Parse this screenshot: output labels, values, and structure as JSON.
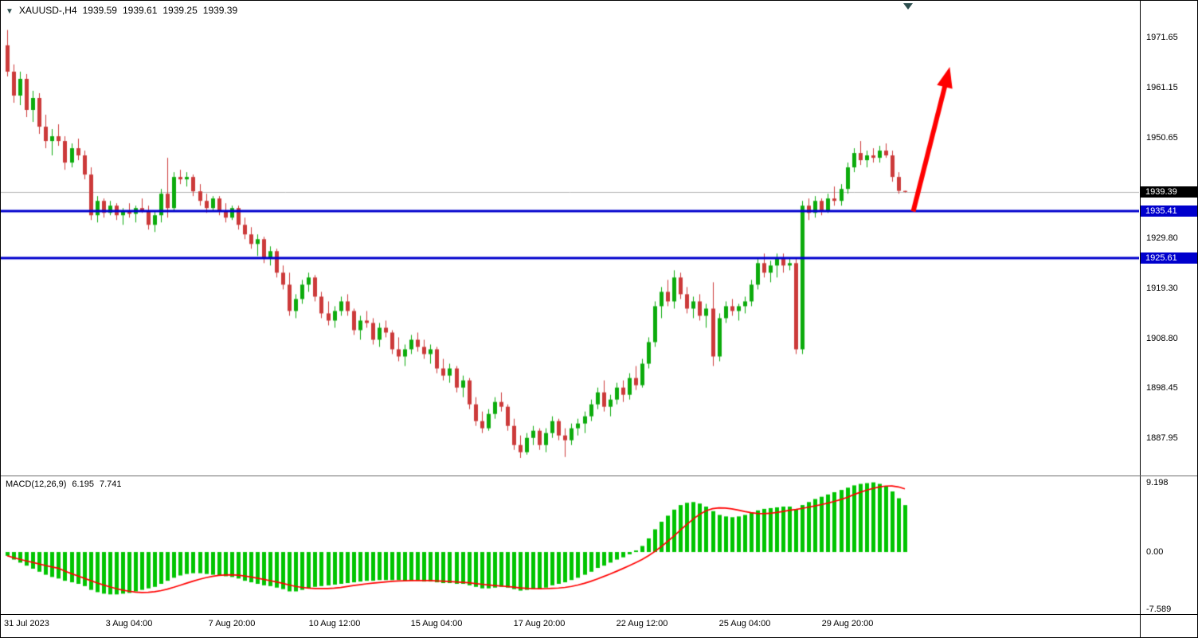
{
  "header": {
    "collapse_icon": "▼",
    "symbol_period": "XAUUSD-,H4",
    "open": "1939.59",
    "high": "1939.61",
    "low": "1939.25",
    "close": "1939.39"
  },
  "macd_header": {
    "label": "MACD(12,26,9)",
    "main_value": "6.195",
    "signal_value": "7.741"
  },
  "chart_data": {
    "type": "candlestick",
    "symbol": "XAUUSD-",
    "timeframe": "H4",
    "colors": {
      "up": "#0cab0c",
      "down": "#cc3a3a",
      "macd_bar": "#00c400",
      "macd_signal": "#ff0000",
      "hline": "#0000cd",
      "current_line": "#b0b0b0",
      "badge_current_bg": "#000000",
      "badge_line_bg": "#0000cd",
      "arrow": "#ff0000"
    },
    "price_scale": {
      "max": 1979.3,
      "min": 1880.3,
      "labels": [
        "1971.65",
        "1961.15",
        "1950.65",
        "1929.80",
        "1919.30",
        "1908.80",
        "1898.45",
        "1887.95"
      ]
    },
    "current_price": {
      "value": 1939.39,
      "label": "1939.39"
    },
    "hlines": [
      {
        "price": 1935.41,
        "label": "1935.41"
      },
      {
        "price": 1925.61,
        "label": "1925.61"
      }
    ],
    "time_labels": [
      {
        "text": "31 Jul 2023",
        "index": 0
      },
      {
        "text": "3 Aug 04:00",
        "index": 19
      },
      {
        "text": "7 Aug 20:00",
        "index": 35
      },
      {
        "text": "10 Aug 12:00",
        "index": 51
      },
      {
        "text": "15 Aug 04:00",
        "index": 67
      },
      {
        "text": "17 Aug 20:00",
        "index": 83
      },
      {
        "text": "22 Aug 12:00",
        "index": 99
      },
      {
        "text": "25 Aug 04:00",
        "index": 115
      },
      {
        "text": "29 Aug 20:00",
        "index": 131
      }
    ],
    "candles": [
      [
        1970.0,
        1973.2,
        1963.5,
        1964.5
      ],
      [
        1964.5,
        1966.0,
        1958.0,
        1959.5
      ],
      [
        1959.5,
        1964.5,
        1957.5,
        1963.0
      ],
      [
        1963.0,
        1964.0,
        1955.0,
        1956.5
      ],
      [
        1956.5,
        1960.5,
        1954.0,
        1959.0
      ],
      [
        1959.0,
        1960.0,
        1951.5,
        1953.0
      ],
      [
        1953.0,
        1955.5,
        1948.5,
        1950.0
      ],
      [
        1950.0,
        1952.5,
        1947.0,
        1951.0
      ],
      [
        1951.0,
        1953.5,
        1949.0,
        1950.0
      ],
      [
        1950.0,
        1951.0,
        1944.0,
        1945.5
      ],
      [
        1945.5,
        1949.5,
        1944.5,
        1948.5
      ],
      [
        1948.5,
        1950.5,
        1946.0,
        1947.0
      ],
      [
        1947.0,
        1948.0,
        1942.0,
        1943.0
      ],
      [
        1943.0,
        1944.5,
        1933.5,
        1934.5
      ],
      [
        1934.5,
        1938.5,
        1933.0,
        1937.5
      ],
      [
        1937.5,
        1938.0,
        1934.0,
        1935.0
      ],
      [
        1935.0,
        1937.5,
        1934.5,
        1936.5
      ],
      [
        1936.5,
        1937.0,
        1933.5,
        1934.5
      ],
      [
        1934.5,
        1936.0,
        1932.5,
        1935.5
      ],
      [
        1935.5,
        1937.0,
        1934.0,
        1934.8
      ],
      [
        1934.8,
        1936.5,
        1933.0,
        1936.0
      ],
      [
        1936.0,
        1938.0,
        1935.0,
        1935.5
      ],
      [
        1935.5,
        1936.5,
        1931.5,
        1932.5
      ],
      [
        1932.5,
        1935.5,
        1931.0,
        1934.5
      ],
      [
        1934.5,
        1940.0,
        1933.0,
        1939.0
      ],
      [
        1939.0,
        1946.5,
        1934.0,
        1936.0
      ],
      [
        1936.0,
        1943.5,
        1935.5,
        1942.5
      ],
      [
        1942.5,
        1944.0,
        1941.0,
        1942.0
      ],
      [
        1942.0,
        1943.5,
        1940.5,
        1942.5
      ],
      [
        1942.5,
        1943.0,
        1938.5,
        1939.5
      ],
      [
        1939.5,
        1941.0,
        1936.5,
        1937.5
      ],
      [
        1937.5,
        1939.0,
        1935.0,
        1936.0
      ],
      [
        1936.0,
        1938.5,
        1935.5,
        1938.0
      ],
      [
        1938.0,
        1938.5,
        1934.5,
        1935.5
      ],
      [
        1935.5,
        1937.0,
        1933.0,
        1934.0
      ],
      [
        1934.0,
        1936.5,
        1933.5,
        1936.0
      ],
      [
        1936.0,
        1936.5,
        1931.5,
        1932.5
      ],
      [
        1932.5,
        1934.0,
        1929.5,
        1930.5
      ],
      [
        1930.5,
        1932.0,
        1927.5,
        1928.5
      ],
      [
        1928.5,
        1930.5,
        1926.0,
        1929.5
      ],
      [
        1929.5,
        1930.0,
        1924.5,
        1925.5
      ],
      [
        1925.5,
        1928.0,
        1924.0,
        1927.0
      ],
      [
        1927.0,
        1927.5,
        1921.5,
        1922.5
      ],
      [
        1922.5,
        1924.0,
        1919.0,
        1920.0
      ],
      [
        1920.0,
        1922.5,
        1913.5,
        1914.5
      ],
      [
        1914.5,
        1918.0,
        1913.0,
        1917.0
      ],
      [
        1917.0,
        1921.0,
        1916.0,
        1920.0
      ],
      [
        1920.0,
        1922.5,
        1918.5,
        1921.5
      ],
      [
        1921.5,
        1922.0,
        1916.5,
        1917.5
      ],
      [
        1917.5,
        1918.5,
        1913.0,
        1914.0
      ],
      [
        1914.0,
        1916.5,
        1911.5,
        1912.5
      ],
      [
        1912.5,
        1915.5,
        1911.0,
        1914.5
      ],
      [
        1914.5,
        1917.5,
        1913.5,
        1916.5
      ],
      [
        1916.5,
        1918.0,
        1913.5,
        1914.5
      ],
      [
        1914.5,
        1915.0,
        1909.5,
        1910.5
      ],
      [
        1910.5,
        1913.5,
        1908.5,
        1912.5
      ],
      [
        1912.5,
        1914.5,
        1911.0,
        1912.0
      ],
      [
        1912.0,
        1913.0,
        1907.5,
        1908.5
      ],
      [
        1908.5,
        1912.0,
        1907.0,
        1911.0
      ],
      [
        1911.0,
        1912.5,
        1909.0,
        1910.0
      ],
      [
        1910.0,
        1910.5,
        1905.5,
        1906.5
      ],
      [
        1906.5,
        1909.0,
        1904.0,
        1905.0
      ],
      [
        1905.0,
        1907.5,
        1903.0,
        1906.5
      ],
      [
        1906.5,
        1909.5,
        1905.5,
        1908.5
      ],
      [
        1908.5,
        1910.0,
        1906.0,
        1907.0
      ],
      [
        1907.0,
        1908.5,
        1904.5,
        1905.5
      ],
      [
        1905.5,
        1907.5,
        1903.5,
        1906.5
      ],
      [
        1906.5,
        1907.0,
        1901.5,
        1902.5
      ],
      [
        1902.5,
        1904.5,
        1900.0,
        1901.0
      ],
      [
        1901.0,
        1903.5,
        1899.5,
        1902.5
      ],
      [
        1902.5,
        1903.0,
        1897.5,
        1898.5
      ],
      [
        1898.5,
        1901.0,
        1896.5,
        1900.0
      ],
      [
        1900.0,
        1900.5,
        1894.0,
        1895.0
      ],
      [
        1895.0,
        1896.5,
        1890.5,
        1891.5
      ],
      [
        1891.5,
        1893.5,
        1889.0,
        1890.0
      ],
      [
        1890.0,
        1894.0,
        1889.5,
        1893.0
      ],
      [
        1893.0,
        1896.5,
        1892.0,
        1895.5
      ],
      [
        1895.5,
        1897.5,
        1893.5,
        1894.5
      ],
      [
        1894.5,
        1895.0,
        1889.5,
        1890.5
      ],
      [
        1890.5,
        1892.0,
        1885.5,
        1886.5
      ],
      [
        1886.5,
        1888.5,
        1883.8,
        1885.0
      ],
      [
        1885.0,
        1889.0,
        1884.5,
        1888.0
      ],
      [
        1888.0,
        1890.5,
        1886.5,
        1889.5
      ],
      [
        1889.5,
        1890.0,
        1885.5,
        1886.5
      ],
      [
        1886.5,
        1890.0,
        1885.0,
        1889.0
      ],
      [
        1889.0,
        1892.5,
        1888.0,
        1891.5
      ],
      [
        1891.5,
        1892.0,
        1887.5,
        1888.5
      ],
      [
        1888.5,
        1890.0,
        1884.0,
        1887.5
      ],
      [
        1887.5,
        1891.0,
        1886.5,
        1890.0
      ],
      [
        1890.0,
        1892.0,
        1888.5,
        1891.0
      ],
      [
        1891.0,
        1893.5,
        1889.0,
        1892.5
      ],
      [
        1892.5,
        1896.0,
        1891.5,
        1895.0
      ],
      [
        1895.0,
        1898.5,
        1894.0,
        1897.5
      ],
      [
        1897.5,
        1900.0,
        1893.5,
        1894.5
      ],
      [
        1894.5,
        1897.0,
        1892.5,
        1896.0
      ],
      [
        1896.0,
        1899.5,
        1895.0,
        1898.5
      ],
      [
        1898.5,
        1900.0,
        1895.5,
        1897.0
      ],
      [
        1897.0,
        1901.5,
        1896.0,
        1900.5
      ],
      [
        1900.5,
        1903.0,
        1898.0,
        1899.0
      ],
      [
        1899.0,
        1904.5,
        1898.5,
        1903.5
      ],
      [
        1903.5,
        1909.0,
        1902.5,
        1908.0
      ],
      [
        1908.0,
        1916.5,
        1907.0,
        1915.5
      ],
      [
        1915.5,
        1919.5,
        1913.0,
        1918.5
      ],
      [
        1918.5,
        1921.0,
        1915.5,
        1916.5
      ],
      [
        1916.5,
        1923.0,
        1915.0,
        1921.5
      ],
      [
        1921.5,
        1922.5,
        1917.0,
        1918.0
      ],
      [
        1918.0,
        1919.5,
        1914.0,
        1915.0
      ],
      [
        1915.0,
        1917.5,
        1913.0,
        1916.5
      ],
      [
        1916.5,
        1918.0,
        1912.5,
        1913.5
      ],
      [
        1913.5,
        1916.0,
        1911.0,
        1915.0
      ],
      [
        1915.0,
        1920.5,
        1903.0,
        1905.0
      ],
      [
        1905.0,
        1914.0,
        1904.0,
        1913.0
      ],
      [
        1913.0,
        1916.5,
        1912.0,
        1915.5
      ],
      [
        1915.5,
        1917.0,
        1913.5,
        1914.5
      ],
      [
        1914.5,
        1916.0,
        1912.5,
        1915.5
      ],
      [
        1915.5,
        1917.5,
        1914.0,
        1916.5
      ],
      [
        1916.5,
        1921.0,
        1915.5,
        1920.0
      ],
      [
        1920.0,
        1925.5,
        1919.0,
        1924.5
      ],
      [
        1924.5,
        1926.5,
        1921.5,
        1922.5
      ],
      [
        1922.5,
        1925.0,
        1920.5,
        1924.0
      ],
      [
        1924.0,
        1926.5,
        1921.5,
        1925.5
      ],
      [
        1925.5,
        1926.5,
        1922.5,
        1924.0
      ],
      [
        1924.0,
        1925.5,
        1923.0,
        1924.5
      ],
      [
        1924.5,
        1925.5,
        1905.5,
        1906.5
      ],
      [
        1906.5,
        1937.5,
        1905.5,
        1936.5
      ],
      [
        1936.5,
        1938.0,
        1933.5,
        1935.0
      ],
      [
        1935.0,
        1938.5,
        1934.0,
        1937.5
      ],
      [
        1937.5,
        1938.0,
        1934.5,
        1935.5
      ],
      [
        1935.5,
        1939.0,
        1935.0,
        1938.0
      ],
      [
        1938.0,
        1940.5,
        1936.5,
        1937.5
      ],
      [
        1937.5,
        1941.0,
        1936.5,
        1940.0
      ],
      [
        1940.0,
        1945.5,
        1939.0,
        1944.5
      ],
      [
        1944.5,
        1948.5,
        1943.5,
        1947.5
      ],
      [
        1947.5,
        1950.0,
        1945.0,
        1946.0
      ],
      [
        1946.0,
        1948.0,
        1944.5,
        1947.0
      ],
      [
        1947.0,
        1948.5,
        1945.5,
        1946.5
      ],
      [
        1946.5,
        1949.0,
        1945.5,
        1948.0
      ],
      [
        1948.0,
        1949.5,
        1946.5,
        1947.0
      ],
      [
        1947.0,
        1948.0,
        1941.5,
        1942.5
      ],
      [
        1942.5,
        1943.5,
        1939.0,
        1939.6
      ],
      [
        1939.59,
        1939.61,
        1939.25,
        1939.39
      ]
    ],
    "macd": {
      "scale": {
        "max": 10.0,
        "min": -8.2,
        "labels": [
          "9.198",
          "0.00",
          "-7.589"
        ]
      },
      "histogram": [
        -0.5,
        -1.0,
        -1.4,
        -1.8,
        -2.2,
        -2.6,
        -3.0,
        -3.3,
        -3.5,
        -3.8,
        -4.0,
        -4.2,
        -4.5,
        -5.0,
        -5.3,
        -5.5,
        -5.6,
        -5.6,
        -5.5,
        -5.4,
        -5.2,
        -5.0,
        -4.8,
        -4.6,
        -4.2,
        -3.8,
        -3.4,
        -3.1,
        -2.9,
        -2.8,
        -2.8,
        -2.9,
        -3.0,
        -3.1,
        -3.2,
        -3.3,
        -3.5,
        -3.8,
        -4.0,
        -4.2,
        -4.4,
        -4.5,
        -4.7,
        -4.9,
        -5.2,
        -5.2,
        -5.0,
        -4.8,
        -4.6,
        -4.5,
        -4.4,
        -4.3,
        -4.2,
        -4.1,
        -4.0,
        -3.9,
        -3.8,
        -3.8,
        -3.7,
        -3.7,
        -3.7,
        -3.7,
        -3.8,
        -3.8,
        -3.8,
        -3.9,
        -3.9,
        -4.0,
        -4.1,
        -4.1,
        -4.2,
        -4.2,
        -4.4,
        -4.6,
        -4.8,
        -4.8,
        -4.7,
        -4.6,
        -4.7,
        -4.9,
        -5.1,
        -5.0,
        -4.9,
        -4.9,
        -4.7,
        -4.4,
        -4.2,
        -4.0,
        -3.7,
        -3.4,
        -3.0,
        -2.6,
        -2.1,
        -1.8,
        -1.4,
        -1.0,
        -0.7,
        -0.3,
        0.2,
        0.8,
        1.8,
        3.0,
        4.0,
        4.8,
        5.6,
        6.2,
        6.5,
        6.6,
        6.4,
        6.0,
        5.4,
        4.9,
        4.7,
        4.6,
        4.7,
        4.9,
        5.2,
        5.5,
        5.7,
        5.8,
        5.9,
        6.0,
        6.0,
        5.6,
        6.2,
        6.6,
        7.0,
        7.3,
        7.6,
        7.9,
        8.2,
        8.5,
        8.8,
        9.0,
        9.1,
        9.2,
        9.0,
        8.7,
        8.0,
        7.1,
        6.195
      ]
    },
    "arrow": {
      "from": {
        "index": 141.3,
        "price": 1935.3
      },
      "to": {
        "index": 147.0,
        "price": 1965.5
      }
    }
  }
}
